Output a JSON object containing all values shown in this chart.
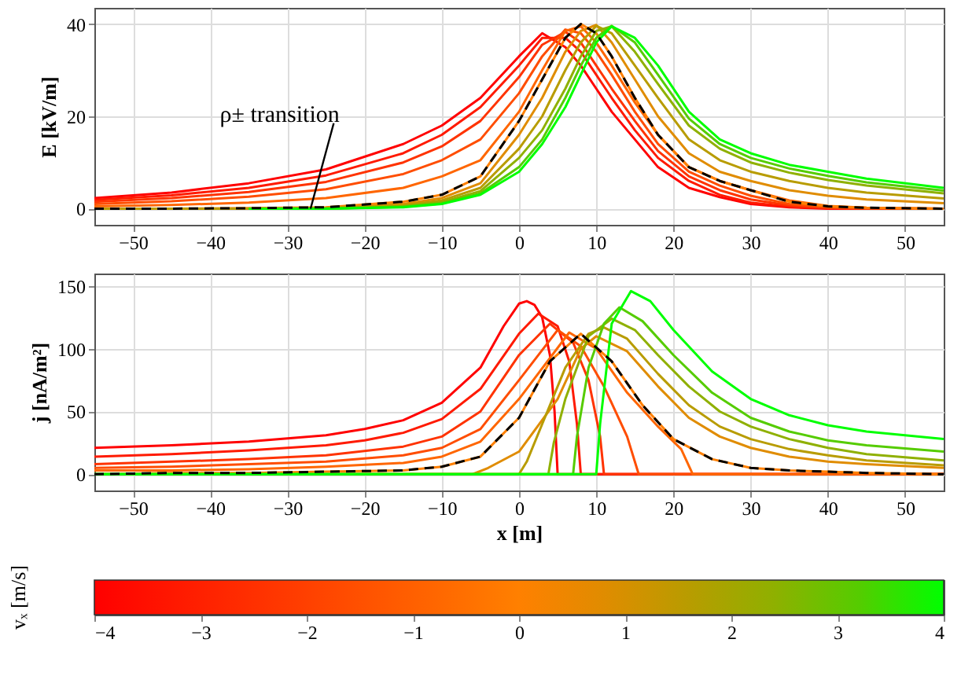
{
  "chart_data": [
    {
      "type": "line",
      "ylabel": "E [kV/m]",
      "xlim": [
        -55,
        55
      ],
      "xticks": [
        -50,
        -40,
        -30,
        -20,
        -10,
        0,
        10,
        20,
        30,
        40,
        50
      ],
      "ylim": [
        -3.5,
        43.5
      ],
      "yticks": [
        0,
        20,
        40
      ],
      "grid": true,
      "x": [
        -55,
        -45,
        -35,
        -25,
        -15,
        -10,
        -5,
        0,
        3,
        6,
        8,
        10,
        12,
        15,
        18,
        22,
        26,
        30,
        35,
        40,
        45,
        55
      ],
      "series": [
        {
          "color": "#ff0000",
          "values": [
            2.3,
            3.5,
            5.5,
            8.5,
            14,
            18,
            24,
            33,
            38,
            35,
            31,
            26,
            21,
            15,
            9,
            4.5,
            2.5,
            1,
            0.3,
            0,
            0,
            0
          ]
        },
        {
          "color": "#ff1a00",
          "values": [
            1.9,
            2.9,
            4.5,
            7.2,
            12,
            16,
            22,
            31,
            37,
            37,
            34,
            29,
            24,
            17,
            11,
            6,
            3,
            1.3,
            0.4,
            0.1,
            0,
            0
          ]
        },
        {
          "color": "#ff3300",
          "values": [
            1.5,
            2.3,
            3.6,
            5.8,
            10,
            13.5,
            19,
            28.5,
            35.5,
            38.3,
            36,
            31,
            26,
            19,
            12.5,
            7,
            4,
            2,
            0.7,
            0.2,
            0,
            0
          ]
        },
        {
          "color": "#ff4d00",
          "values": [
            1,
            1.6,
            2.6,
            4.2,
            7.5,
            10.5,
            15,
            25,
            33,
            38.8,
            38,
            34,
            29,
            21,
            14,
            8,
            5,
            2.8,
            1,
            0.3,
            0.1,
            0
          ]
        },
        {
          "color": "#ff6600",
          "values": [
            0.5,
            0.8,
            1.3,
            2.3,
            4.5,
            7,
            10.5,
            21,
            30,
            38.5,
            39.5,
            36,
            31,
            23,
            16,
            9,
            6,
            4,
            1.8,
            0.6,
            0.2,
            0
          ]
        },
        {
          "color": "#ff8000",
          "values": [
            0,
            0,
            0.1,
            0.3,
            1.5,
            3,
            7,
            19,
            28,
            37,
            40,
            38,
            33,
            24,
            16,
            9,
            6,
            4,
            1.5,
            0.5,
            0.2,
            0
          ]
        },
        {
          "color": "#e08c00",
          "values": [
            0,
            0,
            0,
            0.2,
            1,
            2.3,
            5.5,
            16,
            24,
            34,
            38.5,
            39.8,
            36,
            28,
            20,
            12,
            8,
            6,
            4,
            2.8,
            2,
            1.2
          ]
        },
        {
          "color": "#b89c00",
          "values": [
            0,
            0,
            0,
            0.1,
            0.7,
            1.8,
            4.5,
            13,
            20,
            30,
            36,
            39.6,
            38,
            31,
            24,
            15,
            10.5,
            8,
            6,
            4.5,
            3.5,
            2.2
          ]
        },
        {
          "color": "#8fb000",
          "values": [
            null,
            null,
            0,
            0,
            0.5,
            1.4,
            3.8,
            11,
            17,
            26,
            33,
            38.5,
            39.5,
            34,
            27,
            18,
            13,
            10,
            7.8,
            6.2,
            5,
            3.3
          ]
        },
        {
          "color": "#55cc00",
          "values": [
            null,
            null,
            0,
            0,
            0.4,
            1.1,
            3.3,
            9,
            15,
            24,
            31,
            37,
            39.6,
            36,
            29,
            19.5,
            14,
            11,
            8.7,
            7.1,
            5.7,
            3.9
          ]
        },
        {
          "color": "#00ff00",
          "values": [
            null,
            null,
            0,
            0,
            0.3,
            1,
            3,
            8,
            14,
            22,
            29,
            36,
            39.5,
            37,
            31,
            21,
            15,
            12,
            9.5,
            8,
            6.5,
            4.5
          ]
        },
        {
          "color": "#000000",
          "line_style": "dashed",
          "values": [
            0,
            0,
            0.1,
            0.3,
            1.5,
            3,
            7,
            19,
            28,
            37,
            40,
            38,
            33,
            24,
            16,
            9,
            6,
            4,
            1.5,
            0.5,
            0.2,
            0
          ]
        }
      ],
      "annotations": [
        {
          "text": "ρ± transition",
          "x": -27,
          "y": 0
        }
      ]
    },
    {
      "type": "line",
      "xlabel": "x [m]",
      "ylabel": "j [nA/m²]",
      "xlim": [
        -55,
        55
      ],
      "xticks": [
        -50,
        -40,
        -30,
        -20,
        -10,
        0,
        10,
        20,
        30,
        40,
        50
      ],
      "ylim": [
        -13,
        160
      ],
      "yticks": [
        0,
        50,
        100,
        150
      ],
      "grid": true,
      "clabel": "vₓ [m/s]",
      "clim": [
        -4,
        4
      ],
      "cticks": [
        -4,
        -3,
        -2,
        -1,
        0,
        1,
        2,
        3,
        4
      ],
      "series": [
        {
          "color": "#ff0000",
          "x": [
            -55,
            -45,
            -35,
            -25,
            -20,
            -15,
            -10,
            -5,
            -2,
            0,
            1,
            2,
            3,
            4,
            4.6,
            5,
            55
          ],
          "values": [
            21,
            23,
            26,
            31,
            36,
            43,
            57,
            85,
            118,
            136,
            138,
            135,
            125,
            95,
            50,
            0,
            0
          ]
        },
        {
          "color": "#ff1a00",
          "x": [
            -55,
            -45,
            -35,
            -25,
            -20,
            -15,
            -10,
            -5,
            0,
            2.5,
            5,
            6.5,
            7.5,
            8,
            55
          ],
          "values": [
            14,
            16,
            19,
            23,
            27,
            33,
            44,
            68,
            112,
            128,
            118,
            90,
            40,
            0,
            0
          ]
        },
        {
          "color": "#ff3300",
          "x": [
            -55,
            -45,
            -35,
            -25,
            -15,
            -10,
            -5,
            0,
            4,
            7,
            9,
            10.5,
            11,
            55
          ],
          "values": [
            8,
            10,
            12,
            15,
            22,
            30,
            50,
            95,
            120,
            105,
            75,
            30,
            0,
            0
          ]
        },
        {
          "color": "#ff4d00",
          "x": [
            -55,
            -45,
            -35,
            -25,
            -15,
            -10,
            -5,
            0,
            5,
            8,
            11,
            14,
            15.5,
            55
          ],
          "values": [
            5,
            6,
            8,
            10,
            15,
            21,
            36,
            75,
            115,
            102,
            70,
            30,
            0,
            0
          ]
        },
        {
          "color": "#ff6600",
          "x": [
            -55,
            -45,
            -35,
            -25,
            -15,
            -10,
            -5,
            0,
            6.5,
            10,
            14,
            18,
            21,
            22.5,
            55
          ],
          "values": [
            3,
            3,
            4,
            6,
            9,
            14,
            26,
            60,
            113,
            100,
            65,
            38,
            20,
            0,
            0
          ]
        },
        {
          "color": "#ff8000",
          "x": [
            -55,
            -45,
            -35,
            -25,
            -15,
            -10,
            -5,
            0,
            4,
            8,
            12,
            16,
            20,
            25,
            30,
            35,
            40,
            45,
            55
          ],
          "values": [
            0,
            1,
            1,
            2,
            3,
            6,
            14,
            45,
            90,
            112,
            90,
            55,
            28,
            12,
            5,
            3,
            2,
            1,
            0
          ]
        },
        {
          "color": "#e08c00",
          "x": [
            -55,
            -6,
            -4,
            0,
            5,
            8,
            10,
            14,
            18,
            22,
            26,
            30,
            35,
            40,
            45,
            55
          ],
          "values": [
            0,
            0,
            5,
            18,
            60,
            100,
            110,
            98,
            70,
            45,
            30,
            21,
            14,
            10,
            8,
            5
          ]
        },
        {
          "color": "#b89c00",
          "x": [
            -55,
            0,
            1,
            3,
            6,
            9,
            11,
            14,
            18,
            22,
            26,
            30,
            35,
            40,
            45,
            55
          ],
          "values": [
            0,
            0,
            10,
            40,
            85,
            112,
            117,
            108,
            80,
            55,
            38,
            28,
            20,
            15,
            11,
            7
          ]
        },
        {
          "color": "#8fb000",
          "x": [
            -55,
            3.8,
            4.5,
            6,
            9,
            12,
            15,
            18,
            22,
            26,
            30,
            35,
            40,
            45,
            55
          ],
          "values": [
            0,
            0,
            25,
            60,
            110,
            124,
            115,
            95,
            70,
            50,
            38,
            28,
            21,
            16,
            11
          ]
        },
        {
          "color": "#55cc00",
          "x": [
            -55,
            7,
            7.5,
            9,
            11,
            13,
            16,
            20,
            25,
            30,
            35,
            40,
            45,
            55
          ],
          "values": [
            0,
            0,
            30,
            85,
            120,
            133,
            122,
            95,
            65,
            45,
            34,
            27,
            23,
            18
          ]
        },
        {
          "color": "#00ff00",
          "x": [
            -55,
            10,
            10.5,
            12,
            14.5,
            17,
            20,
            25,
            30,
            35,
            40,
            45,
            55
          ],
          "values": [
            0,
            0,
            40,
            120,
            146,
            138,
            115,
            82,
            60,
            47,
            39,
            34,
            28
          ]
        },
        {
          "color": "#000000",
          "line_style": "dashed",
          "x": [
            -55,
            -45,
            -35,
            -25,
            -15,
            -10,
            -5,
            0,
            4,
            8,
            12,
            16,
            20,
            25,
            30,
            35,
            40,
            45,
            55
          ],
          "values": [
            0,
            1,
            1,
            2,
            3,
            6,
            14,
            45,
            90,
            112,
            90,
            55,
            28,
            12,
            5,
            3,
            2,
            1,
            0
          ]
        }
      ]
    }
  ]
}
